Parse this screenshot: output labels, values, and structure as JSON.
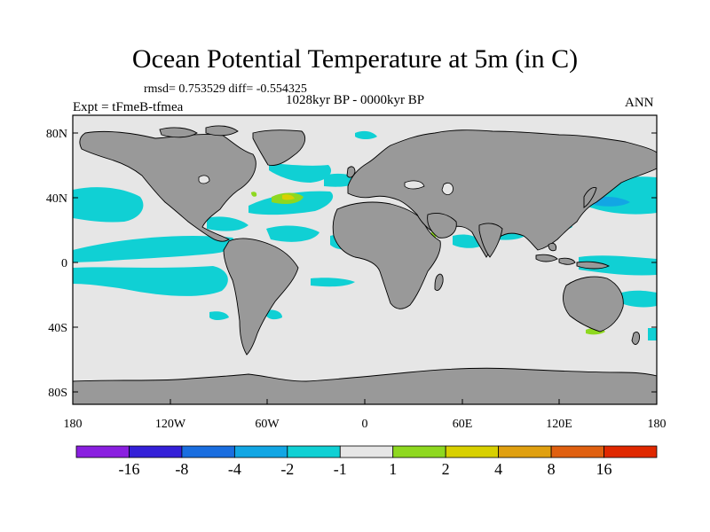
{
  "title": "Ocean Potential Temperature at 5m (in C)",
  "stats_line": "rmsd= 0.753529 diff= -0.554325",
  "time_range": "1028kyr BP - 0000kyr BP",
  "experiment": "Expt = tFmeB-tfmea",
  "season": "ANN",
  "x_ticks": [
    "180",
    "120W",
    "60W",
    "0",
    "60E",
    "120E",
    "180"
  ],
  "y_ticks": [
    "80N",
    "40N",
    "0",
    "40S",
    "80S"
  ],
  "colorbar": {
    "labels": [
      "-16",
      "-8",
      "-4",
      "-2",
      "-1",
      "1",
      "2",
      "4",
      "8",
      "16"
    ],
    "colors": [
      "#8a1fe0",
      "#3420d8",
      "#1a6ee0",
      "#12a6e4",
      "#10d0d4",
      "#e6e6e6",
      "#8ed820",
      "#d8d000",
      "#e0a010",
      "#e06010",
      "#e02800"
    ]
  },
  "colors": {
    "land": "#999999",
    "ocean_neutral": "#e6e6e6",
    "cool_minus_1_2": "#10d0d4",
    "cool_minus_2_4": "#12a6e4",
    "cool_minus_4_8": "#1a6ee0",
    "warm_1_2": "#8ed820",
    "warm_2_4": "#d8d000"
  }
}
